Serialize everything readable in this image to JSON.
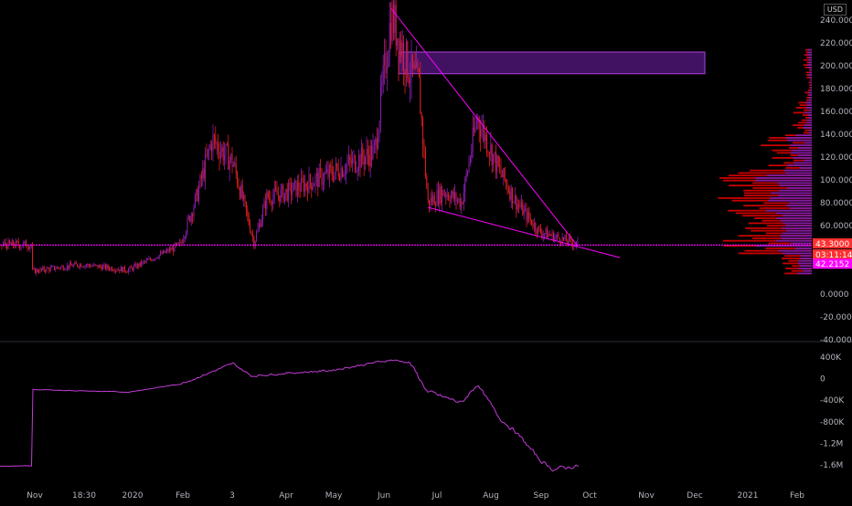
{
  "currency": "USD",
  "colors": {
    "background": "#000000",
    "candle_down": "#e0201f",
    "candle_up": "#8a1fb0",
    "accent_magenta": "#ff00ff",
    "volume_profile_red": "#d40000",
    "volume_profile_purple": "#7d1fb5",
    "zone_fill": "#5c1a8c",
    "indicator_line": "#c23ad6",
    "price_badge": "#ff3030",
    "level_badge": "#ff00ff",
    "axis_text": "#b2b5be"
  },
  "price_badges": {
    "last_price": "43.3000",
    "countdown": "03:11:14",
    "level": "42.2152"
  },
  "chart_data": [
    {
      "type": "candlestick",
      "y_axis_ticks": [
        "240.0000",
        "220.0000",
        "200.0000",
        "180.0000",
        "160.0000",
        "140.0000",
        "120.0000",
        "100.0000",
        "80.0000",
        "60.0000",
        "0.0000",
        "-20.0000",
        "-40.0000"
      ],
      "ylim": [
        -40,
        252
      ],
      "x_axis_labels": [
        "Nov",
        "18:30",
        "2020",
        "Feb",
        "3",
        "Apr",
        "May",
        "Jun",
        "Jul",
        "Aug",
        "Sep",
        "Oct",
        "Nov",
        "Dec",
        "2021",
        "Feb"
      ],
      "approx_price_path": [
        {
          "t": "Nov 2019",
          "v": 20
        },
        {
          "t": "Dec 2019",
          "v": 26
        },
        {
          "t": "Jan 2020",
          "v": 21
        },
        {
          "t": "Feb 2020",
          "v": 43
        },
        {
          "t": "early Feb",
          "v": 85
        },
        {
          "t": "mid Feb",
          "v": 135
        },
        {
          "t": "late Feb",
          "v": 115
        },
        {
          "t": "early Mar",
          "v": 45
        },
        {
          "t": "mid Mar",
          "v": 85
        },
        {
          "t": "Apr",
          "v": 88
        },
        {
          "t": "May",
          "v": 105
        },
        {
          "t": "late May",
          "v": 125
        },
        {
          "t": "early Jun",
          "v": 245
        },
        {
          "t": "mid Jun",
          "v": 195
        },
        {
          "t": "late Jun",
          "v": 185
        },
        {
          "t": "early Jul",
          "v": 80
        },
        {
          "t": "mid Jul",
          "v": 90
        },
        {
          "t": "late Jul",
          "v": 80
        },
        {
          "t": "early Aug",
          "v": 155
        },
        {
          "t": "mid Aug",
          "v": 110
        },
        {
          "t": "late Aug",
          "v": 80
        },
        {
          "t": "Sep",
          "v": 55
        },
        {
          "t": "late Sep",
          "v": 43.3
        }
      ],
      "horizontal_level": 42.2152,
      "resistance_zone": {
        "low": 193,
        "high": 212
      },
      "trendlines": [
        {
          "from": {
            "t": "early Jun",
            "v": 250
          },
          "to": {
            "t": "late Sep",
            "v": 42
          }
        },
        {
          "from": {
            "t": "early Jul",
            "v": 76
          },
          "to": {
            "t": "mid Oct",
            "v": 32
          }
        }
      ],
      "volume_profile": "horizontal volume-by-price histogram on the right, red and purple bars, heaviest between 40 and 130"
    },
    {
      "type": "line",
      "y_axis_ticks": [
        "400K",
        "0",
        "-400K",
        "-800K",
        "-1.2M",
        "-1.6M"
      ],
      "ylim": [
        -1.8,
        0.6
      ],
      "ylim_unit": "M",
      "approx_path": [
        {
          "t": "Nov 2019",
          "v": -0.2
        },
        {
          "t": "2020",
          "v": -0.25
        },
        {
          "t": "Feb 2020",
          "v": -0.1
        },
        {
          "t": "late Feb",
          "v": 0.28
        },
        {
          "t": "Mar",
          "v": 0.05
        },
        {
          "t": "Apr",
          "v": 0.1
        },
        {
          "t": "May",
          "v": 0.15
        },
        {
          "t": "early Jun",
          "v": 0.35
        },
        {
          "t": "mid Jun",
          "v": 0.3
        },
        {
          "t": "early Jul",
          "v": -0.25
        },
        {
          "t": "late Jul",
          "v": -0.45
        },
        {
          "t": "early Aug",
          "v": -0.1
        },
        {
          "t": "mid Aug",
          "v": -0.7
        },
        {
          "t": "late Aug",
          "v": -1.0
        },
        {
          "t": "early Sep",
          "v": -1.5
        },
        {
          "t": "mid Sep",
          "v": -1.68
        },
        {
          "t": "late Sep",
          "v": -1.62
        }
      ]
    }
  ]
}
